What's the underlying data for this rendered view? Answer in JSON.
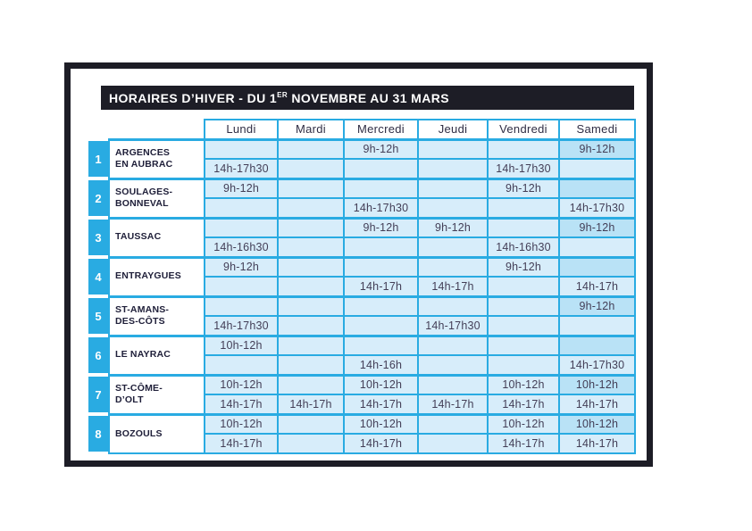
{
  "title": {
    "part1": "HORAIRES D’HIVER - DU 1",
    "sup": "ER",
    "part2": " NOVEMBRE AU 31 MARS"
  },
  "colors": {
    "accent_cyan": "#29abe2",
    "cell_light": "#d7edfa",
    "cell_dark_saturday_morning": "#b9e2f6",
    "frame_dark": "#1d1d26",
    "time_text": "#433e56",
    "name_text": "#20203a"
  },
  "table": {
    "days": [
      "Lundi",
      "Mardi",
      "Mercredi",
      "Jeudi",
      "Vendredi",
      "Samedi"
    ],
    "rows": [
      {
        "num": "1",
        "name_lines": [
          "ARGENCES",
          "EN AUBRAC"
        ],
        "morning": [
          "",
          "",
          "9h-12h",
          "",
          "",
          "9h-12h"
        ],
        "afternoon": [
          "14h-17h30",
          "",
          "",
          "",
          "14h-17h30",
          ""
        ]
      },
      {
        "num": "2",
        "name_lines": [
          "SOULAGES-",
          "BONNEVAL"
        ],
        "morning": [
          "9h-12h",
          "",
          "",
          "",
          "9h-12h",
          ""
        ],
        "afternoon": [
          "",
          "",
          "14h-17h30",
          "",
          "",
          "14h-17h30"
        ]
      },
      {
        "num": "3",
        "name_lines": [
          "TAUSSAC"
        ],
        "morning": [
          "",
          "",
          "9h-12h",
          "9h-12h",
          "",
          "9h-12h"
        ],
        "afternoon": [
          "14h-16h30",
          "",
          "",
          "",
          "14h-16h30",
          ""
        ]
      },
      {
        "num": "4",
        "name_lines": [
          "ENTRAYGUES"
        ],
        "morning": [
          "9h-12h",
          "",
          "",
          "",
          "9h-12h",
          ""
        ],
        "afternoon": [
          "",
          "",
          "14h-17h",
          "14h-17h",
          "",
          "14h-17h"
        ]
      },
      {
        "num": "5",
        "name_lines": [
          "ST-AMANS-",
          "DES-CÔTS"
        ],
        "morning": [
          "",
          "",
          "",
          "",
          "",
          "9h-12h"
        ],
        "afternoon": [
          "14h-17h30",
          "",
          "",
          "14h-17h30",
          "",
          ""
        ]
      },
      {
        "num": "6",
        "name_lines": [
          "LE NAYRAC"
        ],
        "morning": [
          "10h-12h",
          "",
          "",
          "",
          "",
          ""
        ],
        "afternoon": [
          "",
          "",
          "14h-16h",
          "",
          "",
          "14h-17h30"
        ]
      },
      {
        "num": "7",
        "name_lines": [
          "ST-CÔME-",
          "D’OLT"
        ],
        "morning": [
          "10h-12h",
          "",
          "10h-12h",
          "",
          "10h-12h",
          "10h-12h"
        ],
        "afternoon": [
          "14h-17h",
          "14h-17h",
          "14h-17h",
          "14h-17h",
          "14h-17h",
          "14h-17h"
        ]
      },
      {
        "num": "8",
        "name_lines": [
          "BOZOULS"
        ],
        "morning": [
          "10h-12h",
          "",
          "10h-12h",
          "",
          "10h-12h",
          "10h-12h"
        ],
        "afternoon": [
          "14h-17h",
          "",
          "14h-17h",
          "",
          "14h-17h",
          "14h-17h"
        ]
      }
    ]
  }
}
